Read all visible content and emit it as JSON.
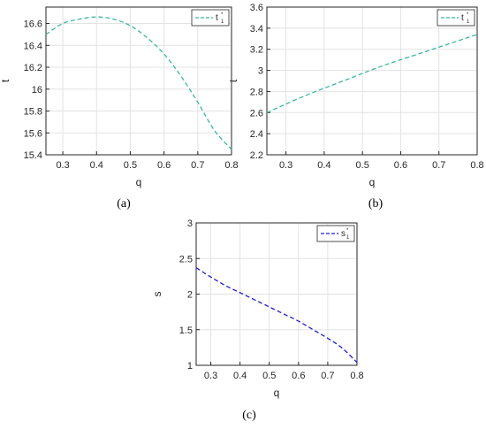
{
  "chart_data": [
    {
      "type": "line",
      "caption": "(a)",
      "xlabel": "q",
      "ylabel": "t",
      "xlim": [
        0.25,
        0.8
      ],
      "ylim": [
        15.4,
        16.75
      ],
      "xticks": [
        "0.3",
        "0.4",
        "0.5",
        "0.6",
        "0.7",
        "0.8"
      ],
      "yticks": [
        "15.4",
        "15.6",
        "15.8",
        "16",
        "16.2",
        "16.4",
        "16.6"
      ],
      "grid": true,
      "legend_position": "top-right",
      "series": [
        {
          "name": "t",
          "name_sub": "1",
          "name_sup": "*",
          "color": "#3cb8a0",
          "dash": "dashed",
          "x": [
            0.25,
            0.3,
            0.35,
            0.4,
            0.45,
            0.5,
            0.55,
            0.6,
            0.65,
            0.7,
            0.75,
            0.8
          ],
          "y": [
            16.5,
            16.6,
            16.64,
            16.66,
            16.64,
            16.58,
            16.47,
            16.32,
            16.12,
            15.88,
            15.62,
            15.45
          ]
        }
      ]
    },
    {
      "type": "line",
      "caption": "(b)",
      "xlabel": "q",
      "ylabel": "t",
      "xlim": [
        0.25,
        0.8
      ],
      "ylim": [
        2.2,
        3.6
      ],
      "xticks": [
        "0.3",
        "0.4",
        "0.5",
        "0.6",
        "0.7",
        "0.8"
      ],
      "yticks": [
        "2.2",
        "2.4",
        "2.6",
        "2.8",
        "3",
        "3.2",
        "3.4",
        "3.6"
      ],
      "grid": true,
      "legend_position": "top-right",
      "series": [
        {
          "name": "t",
          "name_sub": "1",
          "name_sup": "*",
          "color": "#3cb8a0",
          "dash": "dashed",
          "x": [
            0.25,
            0.35,
            0.45,
            0.55,
            0.65,
            0.8
          ],
          "y": [
            2.6,
            2.76,
            2.9,
            3.04,
            3.16,
            3.34
          ]
        }
      ]
    },
    {
      "type": "line",
      "caption": "(c)",
      "xlabel": "q",
      "ylabel": "s",
      "xlim": [
        0.25,
        0.8
      ],
      "ylim": [
        1,
        3
      ],
      "xticks": [
        "0.3",
        "0.4",
        "0.5",
        "0.6",
        "0.7",
        "0.8"
      ],
      "yticks": [
        "1",
        "1.5",
        "2",
        "2.5",
        "3"
      ],
      "grid": true,
      "legend_position": "top-right",
      "series": [
        {
          "name": "s",
          "name_sub": "1",
          "name_sup": "*",
          "color": "#1f1fcc",
          "dash": "dashed",
          "x": [
            0.25,
            0.3,
            0.35,
            0.4,
            0.45,
            0.5,
            0.55,
            0.6,
            0.65,
            0.7,
            0.75,
            0.8
          ],
          "y": [
            2.37,
            2.24,
            2.12,
            2.02,
            1.92,
            1.82,
            1.72,
            1.62,
            1.5,
            1.38,
            1.24,
            1.04
          ]
        }
      ]
    }
  ]
}
